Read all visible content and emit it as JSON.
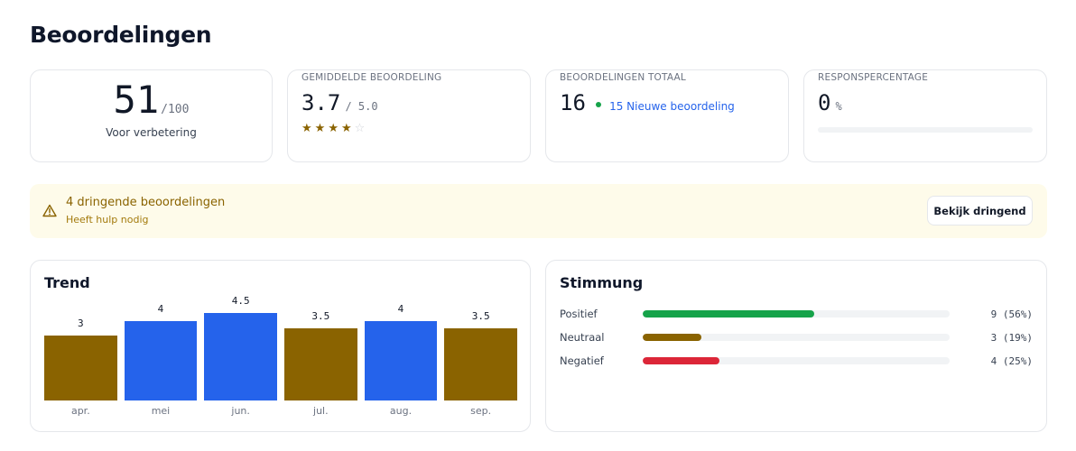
{
  "page": {
    "title": "Beoordelingen"
  },
  "kpis": {
    "score": {
      "value": "51",
      "of": "/100",
      "caption": "Voor verbetering"
    },
    "average": {
      "label": "GEMIDDELDE BEOORDELING",
      "value": "3.7",
      "of": "/ 5.0",
      "stars_filled": 4,
      "stars_total": 5
    },
    "total": {
      "label": "BEOORDELINGEN TOTAAL",
      "value": "16",
      "new_text": "15 Nieuwe beoordeling"
    },
    "response": {
      "label": "RESPONSPERCENTAGE",
      "value": "0",
      "unit": "%",
      "progress": 0
    }
  },
  "alert": {
    "title": "4 dringende beoordelingen",
    "subtitle": "Heeft hulp nodig",
    "button_label": "Bekijk dringend",
    "icon": "warning-triangle-icon"
  },
  "trend": {
    "title": "Trend",
    "chart_data": {
      "type": "bar",
      "categories": [
        "apr.",
        "mei",
        "jun.",
        "jul.",
        "aug.",
        "sep."
      ],
      "values": [
        3,
        4,
        4.5,
        3.5,
        4,
        3.5
      ],
      "value_labels": [
        "3",
        "4",
        "4.5",
        "3.5",
        "4",
        "3.5"
      ],
      "colors": [
        "#8a6300",
        "#2563eb",
        "#2563eb",
        "#8a6300",
        "#2563eb",
        "#8a6300"
      ],
      "title": "",
      "xlabel": "",
      "ylabel": ""
    }
  },
  "sentiment": {
    "title": "Stimmung",
    "rows": [
      {
        "label": "Positief",
        "count": "9 (56%)",
        "fraction": 0.56,
        "color": "#16a34a"
      },
      {
        "label": "Neutraal",
        "count": "3 (19%)",
        "fraction": 0.19,
        "color": "#8a6300"
      },
      {
        "label": "Negatief",
        "count": "4 (25%)",
        "fraction": 0.25,
        "color": "#dc2638"
      }
    ]
  }
}
